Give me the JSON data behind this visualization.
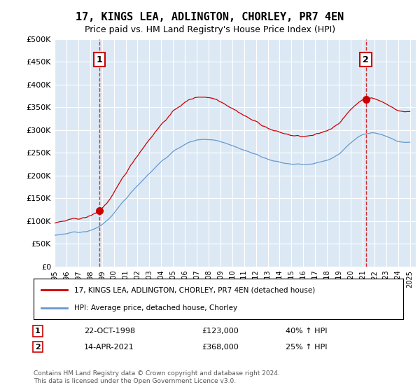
{
  "title": "17, KINGS LEA, ADLINGTON, CHORLEY, PR7 4EN",
  "subtitle": "Price paid vs. HM Land Registry's House Price Index (HPI)",
  "background_color": "#dce9f5",
  "plot_background": "#dce9f5",
  "red_line_color": "#cc0000",
  "blue_line_color": "#6699cc",
  "marker_color": "#cc0000",
  "vline_color": "#cc0000",
  "ylim": [
    0,
    500000
  ],
  "yticks": [
    0,
    50000,
    100000,
    150000,
    200000,
    250000,
    300000,
    350000,
    400000,
    450000,
    500000
  ],
  "x_start_year": 1995,
  "x_end_year": 2025,
  "sale1_year": 1998.8,
  "sale1_price": 123000,
  "sale1_label": "1",
  "sale1_date": "22-OCT-1998",
  "sale1_hpi": "40% ↑ HPI",
  "sale2_year": 2021.28,
  "sale2_price": 368000,
  "sale2_label": "2",
  "sale2_date": "14-APR-2021",
  "sale2_hpi": "25% ↑ HPI",
  "legend_line1": "17, KINGS LEA, ADLINGTON, CHORLEY, PR7 4EN (detached house)",
  "legend_line2": "HPI: Average price, detached house, Chorley",
  "footer": "Contains HM Land Registry data © Crown copyright and database right 2024.\nThis data is licensed under the Open Government Licence v3.0.",
  "table_row1_num": "1",
  "table_row1_date": "22-OCT-1998",
  "table_row1_price": "£123,000",
  "table_row1_hpi": "40% ↑ HPI",
  "table_row2_num": "2",
  "table_row2_date": "14-APR-2021",
  "table_row2_price": "£368,000",
  "table_row2_hpi": "25% ↑ HPI"
}
